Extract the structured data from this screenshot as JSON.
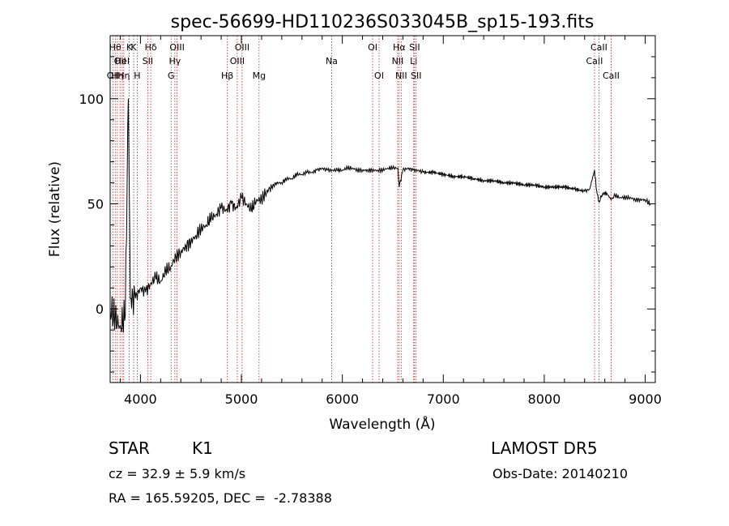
{
  "chart_data": {
    "type": "line",
    "title": "spec-56699-HD110236S033045B_sp15-193.fits",
    "xlabel": "Wavelength (Å)",
    "ylabel": "Flux (relative)",
    "xlim": [
      3700,
      9100
    ],
    "ylim": [
      -35,
      130
    ],
    "x_ticks": [
      4000,
      5000,
      6000,
      7000,
      8000,
      9000
    ],
    "y_ticks": [
      0,
      50,
      100
    ],
    "grid": false,
    "legend": "none",
    "line_color": "#000000",
    "marker_color": "#b22222",
    "series": [
      {
        "x": [
          3700,
          3750,
          3800,
          3850,
          3880,
          3900,
          3950,
          4000,
          4050,
          4100,
          4150,
          4200,
          4250,
          4300,
          4350,
          4400,
          4450,
          4500,
          4550,
          4600,
          4650,
          4700,
          4750,
          4800,
          4850,
          4900,
          4950,
          5000,
          5050,
          5100,
          5150,
          5200,
          5250,
          5300,
          5350,
          5400,
          5450,
          5500,
          5550,
          5600,
          5650,
          5700,
          5750,
          5800,
          5850,
          5900,
          5950,
          6000,
          6050,
          6100,
          6150,
          6200,
          6250,
          6300,
          6350,
          6400,
          6450,
          6500,
          6550,
          6563,
          6600,
          6650,
          6700,
          6750,
          6800,
          6900,
          7000,
          7100,
          7200,
          7300,
          7400,
          7500,
          7600,
          7700,
          7800,
          7900,
          8000,
          8100,
          8200,
          8300,
          8400,
          8450,
          8498,
          8520,
          8542,
          8580,
          8620,
          8662,
          8700,
          8750,
          8800,
          8850,
          8900,
          8950,
          9000,
          9050
        ],
        "values": [
          0,
          -5,
          -8,
          -3,
          100,
          5,
          5,
          10,
          8,
          12,
          15,
          13,
          18,
          20,
          25,
          27,
          30,
          32,
          35,
          38,
          40,
          43,
          45,
          48,
          47,
          50,
          48,
          53,
          50,
          47,
          52,
          52,
          56,
          58,
          60,
          60,
          62,
          62,
          64,
          64,
          65,
          65,
          66,
          67,
          66,
          66,
          66,
          66,
          67,
          67,
          66,
          66,
          66,
          66,
          66,
          66,
          67,
          67,
          67,
          58,
          66,
          67,
          66,
          66,
          65,
          65,
          64,
          63,
          63,
          62,
          61,
          61,
          60,
          60,
          59,
          59,
          58,
          58,
          58,
          57,
          56,
          57,
          66,
          56,
          51,
          55,
          55,
          52,
          54,
          53,
          53,
          53,
          52,
          52,
          52,
          50
        ]
      }
    ],
    "lines": [
      {
        "x": 3727,
        "label": "OII",
        "row": 3
      },
      {
        "x": 3750,
        "label": "Hθ",
        "row": 1
      },
      {
        "x": 3771,
        "label": "Hη",
        "row": 3
      },
      {
        "x": 3798,
        "label": "OII",
        "row": 2
      },
      {
        "x": 3820,
        "label": "HeI",
        "row": 2
      },
      {
        "x": 3835,
        "label": "Hη",
        "row": 3
      },
      {
        "x": 3889,
        "label": "K",
        "row": 1
      },
      {
        "x": 3933,
        "label": "K",
        "row": 1
      },
      {
        "x": 3968,
        "label": "H",
        "row": 3
      },
      {
        "x": 4072,
        "label": "SII",
        "row": 2
      },
      {
        "x": 4102,
        "label": "Hδ",
        "row": 1
      },
      {
        "x": 4304,
        "label": "G",
        "row": 3
      },
      {
        "x": 4341,
        "label": "Hγ",
        "row": 2
      },
      {
        "x": 4363,
        "label": "OIII",
        "row": 1
      },
      {
        "x": 4861,
        "label": "Hβ",
        "row": 3
      },
      {
        "x": 4959,
        "label": "OIII",
        "row": 2
      },
      {
        "x": 5007,
        "label": "OIII",
        "row": 1
      },
      {
        "x": 5175,
        "label": "Mg",
        "row": 3
      },
      {
        "x": 5894,
        "label": "Na",
        "row": 2
      },
      {
        "x": 6300,
        "label": "OI",
        "row": 1
      },
      {
        "x": 6364,
        "label": "OI",
        "row": 3
      },
      {
        "x": 6548,
        "label": "NII",
        "row": 2
      },
      {
        "x": 6563,
        "label": "Hα",
        "row": 1
      },
      {
        "x": 6583,
        "label": "NII",
        "row": 3
      },
      {
        "x": 6707,
        "label": "Li",
        "row": 2
      },
      {
        "x": 6716,
        "label": "SII",
        "row": 1
      },
      {
        "x": 6731,
        "label": "SII",
        "row": 3
      },
      {
        "x": 8498,
        "label": "CaII",
        "row": 2
      },
      {
        "x": 8542,
        "label": "CaII",
        "row": 1
      },
      {
        "x": 8662,
        "label": "CaII",
        "row": 3
      }
    ]
  },
  "info": {
    "class": "STAR",
    "subclass": "K1",
    "survey": "LAMOST DR5",
    "cz": "cz = 32.9 ± 5.9 km/s",
    "obsdate": "Obs-Date: 20140210",
    "coords": "RA = 165.59205, DEC =  -2.78388"
  }
}
